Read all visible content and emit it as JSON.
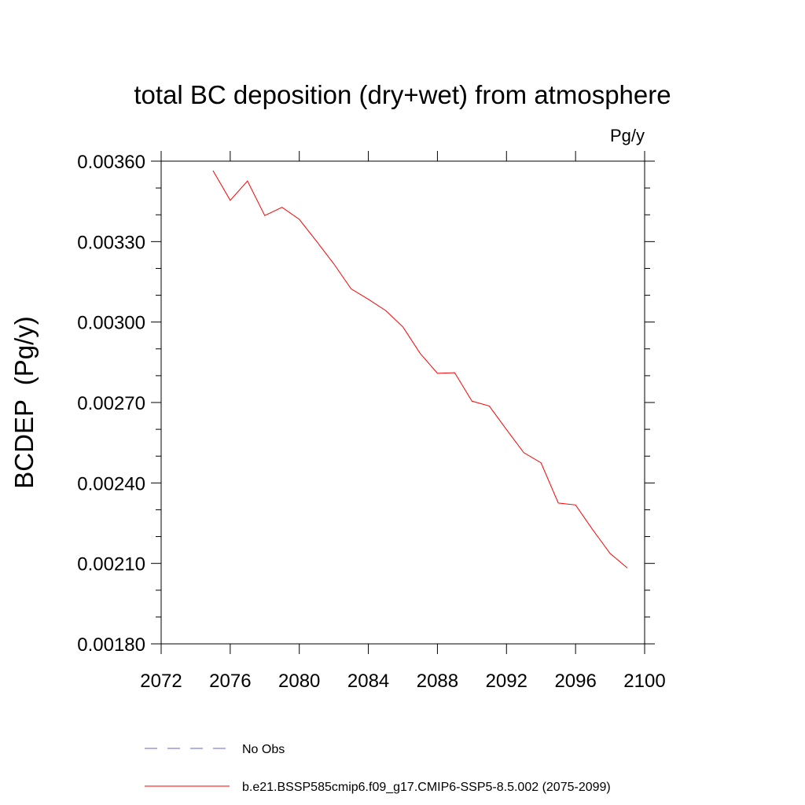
{
  "chart_data": {
    "type": "line",
    "title": "total BC deposition (dry+wet) from atmosphere",
    "units_label": "Pg/y",
    "ylabel": "BCDEP  (Pg/y)",
    "xlabel": "",
    "xlim": [
      2072,
      2100
    ],
    "ylim": [
      0.0018,
      0.0036
    ],
    "x_ticks": [
      2072,
      2076,
      2080,
      2084,
      2088,
      2092,
      2096,
      2100
    ],
    "x_tick_labels": [
      "2072",
      "2076",
      "2080",
      "2084",
      "2088",
      "2092",
      "2096",
      "2100"
    ],
    "y_ticks": [
      0.0018,
      0.0021,
      0.0024,
      0.0027,
      0.003,
      0.0033,
      0.0036
    ],
    "y_tick_labels": [
      "0.00180",
      "0.00210",
      "0.00240",
      "0.00270",
      "0.00300",
      "0.00330",
      "0.00360"
    ],
    "grid": false,
    "legend_position": "bottom",
    "series": [
      {
        "name": "b.e21.BSSP585cmip6.f09_g17.CMIP6-SSP5-8.5.002 (2075-2099)",
        "color": "#ff0000",
        "style": "solid",
        "x": [
          2075,
          2076,
          2077,
          2078,
          2079,
          2080,
          2081,
          2082,
          2083,
          2084,
          2085,
          2086,
          2087,
          2088,
          2089,
          2090,
          2091,
          2092,
          2093,
          2094,
          2095,
          2096,
          2097,
          2098,
          2099
        ],
        "y": [
          0.003565,
          0.003454,
          0.003526,
          0.003397,
          0.003428,
          0.003383,
          0.003301,
          0.003217,
          0.003124,
          0.003085,
          0.003043,
          0.002982,
          0.002883,
          0.002809,
          0.002811,
          0.002705,
          0.002687,
          0.002599,
          0.002513,
          0.002475,
          0.002325,
          0.002318,
          0.002225,
          0.002137,
          0.002083
        ]
      }
    ],
    "legend": [
      {
        "label": "No Obs",
        "color": "#6666cc",
        "style": "dashed"
      },
      {
        "label": "b.e21.BSSP585cmip6.f09_g17.CMIP6-SSP5-8.5.002 (2075-2099)",
        "color": "#ff0000",
        "style": "solid"
      }
    ]
  }
}
